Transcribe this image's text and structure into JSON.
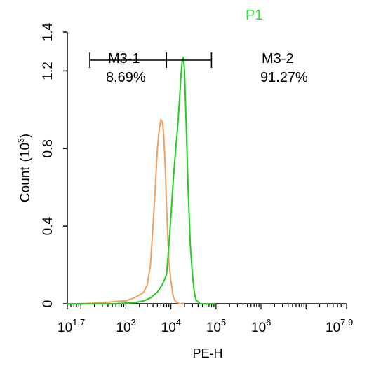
{
  "chart_data": {
    "type": "line",
    "title": "P1",
    "xlabel": "PE-H",
    "ylabel": "Count",
    "ylabel_unit": "(10",
    "ylabel_unit_sup": "3",
    "ylabel_unit_close": ")",
    "xscale": "log",
    "xlim": [
      50.12,
      79432823
    ],
    "ylim": [
      0,
      1.4
    ],
    "x_ticks": [
      {
        "base": "10",
        "exp": "1.7"
      },
      {
        "base": "10",
        "exp": "3"
      },
      {
        "base": "10",
        "exp": "4"
      },
      {
        "base": "10",
        "exp": "5"
      },
      {
        "base": "10",
        "exp": "6"
      },
      {
        "base": "10",
        "exp": "7.9"
      }
    ],
    "y_ticks": [
      "0",
      "0.4",
      "0.8",
      "1.2",
      "1.4"
    ],
    "gates": [
      {
        "name": "M3-1",
        "percent": "8.69%",
        "x_range": [
          158,
          7943
        ]
      },
      {
        "name": "M3-2",
        "percent": "91.27%",
        "x_range": [
          7943,
          79433
        ]
      }
    ],
    "series": [
      {
        "color": "#f0a060",
        "x": [
          50,
          100,
          300,
          600,
          1000,
          1500,
          2000,
          2500,
          3000,
          3500,
          4000,
          4500,
          5000,
          5500,
          6000,
          6300,
          6600,
          7000,
          7500,
          8000,
          8500,
          9000,
          10000,
          11000,
          12000,
          13000,
          14000,
          16000,
          20000
        ],
        "y": [
          0,
          0,
          0.005,
          0.012,
          0.015,
          0.03,
          0.045,
          0.06,
          0.1,
          0.2,
          0.4,
          0.6,
          0.8,
          0.9,
          0.95,
          0.94,
          0.92,
          0.85,
          0.7,
          0.5,
          0.35,
          0.22,
          0.12,
          0.05,
          0.02,
          0.01,
          0.005,
          0,
          0
        ]
      },
      {
        "color": "#22cc22",
        "x": [
          50,
          500,
          1500,
          2500,
          3500,
          5000,
          6500,
          8000,
          9000,
          10000,
          11000,
          12000,
          13000,
          14000,
          15000,
          16000,
          17000,
          18000,
          19000,
          20000,
          22000,
          24000,
          27000,
          30000,
          33000,
          36000,
          40000,
          45000,
          50000,
          100000
        ],
        "y": [
          0,
          0,
          0.005,
          0.015,
          0.03,
          0.06,
          0.1,
          0.15,
          0.3,
          0.45,
          0.6,
          0.72,
          0.82,
          0.9,
          1.0,
          1.1,
          1.2,
          1.26,
          1.27,
          1.2,
          0.9,
          0.6,
          0.3,
          0.15,
          0.06,
          0.02,
          0.01,
          0,
          0,
          0
        ]
      }
    ]
  }
}
